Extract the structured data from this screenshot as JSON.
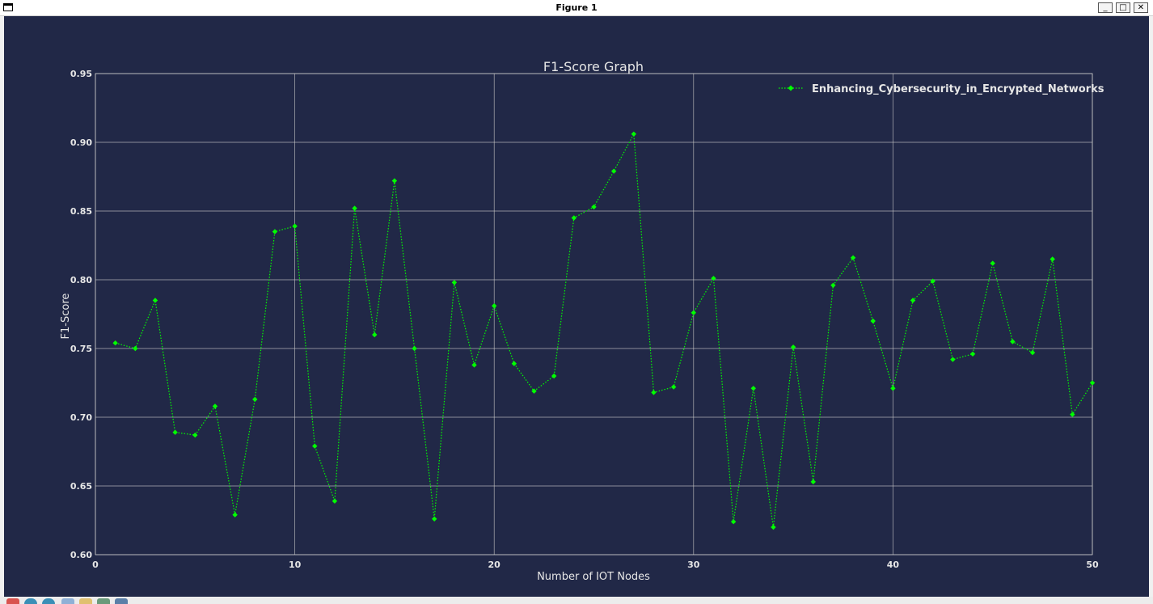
{
  "window": {
    "title": "Figure 1",
    "minimize": "_",
    "maximize": "□",
    "close": "✕"
  },
  "toolbar": {
    "icons": [
      "home-icon",
      "back-icon",
      "forward-icon",
      "pan-icon",
      "zoom-icon",
      "configure-icon",
      "save-icon"
    ]
  },
  "colors": {
    "figure_bg": "#212847",
    "line": "#00ff00",
    "grid": "#c8c8c8",
    "text": "#e6e6e6"
  },
  "chart_data": {
    "type": "line",
    "title": "F1-Score Graph",
    "xlabel": "Number of IOT Nodes",
    "ylabel": "F1-Score",
    "xlim": [
      0,
      50
    ],
    "ylim": [
      0.6,
      0.95
    ],
    "xticks": [
      "0",
      "10",
      "20",
      "30",
      "40",
      "50"
    ],
    "yticks": [
      "0.60",
      "0.65",
      "0.70",
      "0.75",
      "0.80",
      "0.85",
      "0.90",
      "0.95"
    ],
    "grid": true,
    "legend_position": "top-right",
    "line_style": "dotted",
    "marker": "diamond",
    "series": [
      {
        "name": "Enhancing_Cybersecurity_in_Encrypted_Networks",
        "x": [
          1,
          2,
          3,
          4,
          5,
          6,
          7,
          8,
          9,
          10,
          11,
          12,
          13,
          14,
          15,
          16,
          17,
          18,
          19,
          20,
          21,
          22,
          23,
          24,
          25,
          26,
          27,
          28,
          29,
          30,
          31,
          32,
          33,
          34,
          35,
          36,
          37,
          38,
          39,
          40,
          41,
          42,
          43,
          44,
          45,
          46,
          47,
          48,
          49,
          50
        ],
        "y": [
          0.754,
          0.75,
          0.785,
          0.689,
          0.687,
          0.708,
          0.629,
          0.713,
          0.835,
          0.839,
          0.679,
          0.639,
          0.852,
          0.76,
          0.872,
          0.75,
          0.626,
          0.798,
          0.738,
          0.781,
          0.739,
          0.719,
          0.73,
          0.845,
          0.853,
          0.879,
          0.906,
          0.718,
          0.722,
          0.776,
          0.801,
          0.624,
          0.721,
          0.62,
          0.751,
          0.653,
          0.796,
          0.816,
          0.77,
          0.721,
          0.785,
          0.799,
          0.742,
          0.746,
          0.812,
          0.755,
          0.747,
          0.815,
          0.702,
          0.725
        ]
      }
    ]
  }
}
